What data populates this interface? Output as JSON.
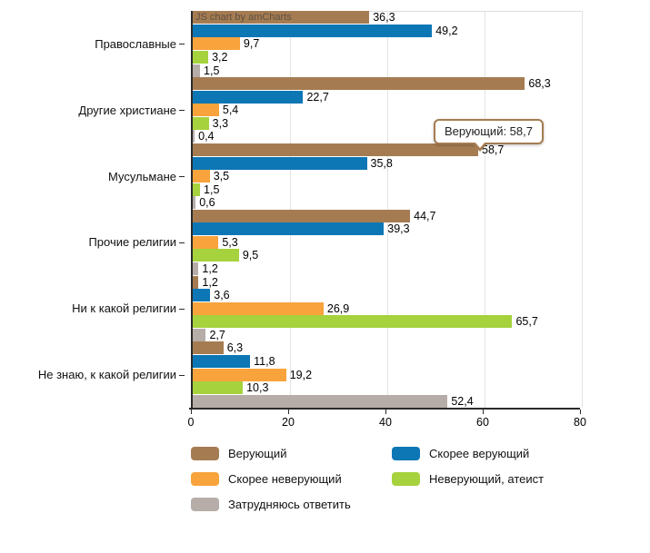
{
  "watermark": "JS chart by amCharts",
  "tooltip": {
    "series": "Верующий",
    "value": "58,7",
    "text": "Верующий: 58,7"
  },
  "chart_data": {
    "type": "bar",
    "orientation": "horizontal",
    "title": "",
    "xlabel": "",
    "ylabel": "",
    "xlim": [
      0,
      80
    ],
    "x_ticks": [
      0,
      20,
      40,
      60,
      80
    ],
    "grid": true,
    "legend_position": "bottom",
    "decimal_separator": ",",
    "categories": [
      "Православные",
      "Другие христиане",
      "Мусульмане",
      "Прочие религии",
      "Ни к какой религии",
      "Не знаю, к какой религии"
    ],
    "series": [
      {
        "name": "Верующий",
        "color": "#A57C52",
        "values": [
          36.3,
          68.3,
          58.7,
          44.7,
          1.2,
          6.3
        ]
      },
      {
        "name": "Скорее верующий",
        "color": "#0D76B5",
        "values": [
          49.2,
          22.7,
          35.8,
          39.3,
          3.6,
          11.8
        ]
      },
      {
        "name": "Скорее неверующий",
        "color": "#F8A33C",
        "values": [
          9.7,
          5.4,
          3.5,
          5.3,
          26.9,
          19.2
        ]
      },
      {
        "name": "Неверующий, атеист",
        "color": "#A6D23D",
        "values": [
          3.2,
          3.3,
          1.5,
          9.5,
          65.7,
          10.3
        ]
      },
      {
        "name": "Затрудняюсь ответить",
        "color": "#B6ADA9",
        "values": [
          1.5,
          0.4,
          0.6,
          1.2,
          2.7,
          52.4
        ]
      }
    ],
    "colors": {
      "axis": "#2a2a2a",
      "gridline": "#e3e3e3",
      "tooltip_border": "#A57C52",
      "value_label": "#000000"
    }
  }
}
